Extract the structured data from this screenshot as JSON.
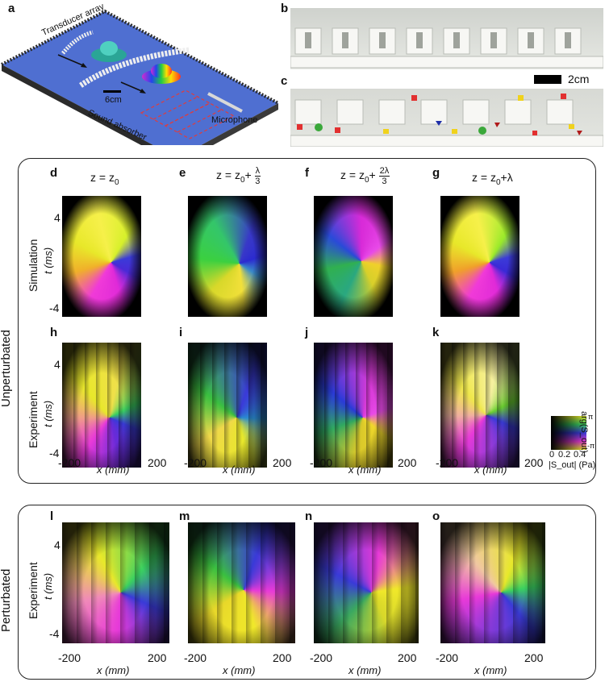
{
  "panels": {
    "a": "a",
    "b": "b",
    "c": "c",
    "d": "d",
    "e": "e",
    "f": "f",
    "g": "g",
    "h": "h",
    "i": "i",
    "j": "j",
    "k": "k",
    "l": "l",
    "m": "m",
    "n": "n",
    "o": "o"
  },
  "setup": {
    "transducer_array": "Transducer array",
    "sound_absorber": "Sound absorber",
    "microphone": "Microphone",
    "scale_6cm": "6cm"
  },
  "photo": {
    "scale_2cm": "2cm"
  },
  "columns": {
    "z_prefix": "z = z",
    "sub0": "0",
    "plus": "+",
    "lambda": "λ",
    "two_lambda": "2λ",
    "three": "3"
  },
  "rows": {
    "simulation": "Simulation",
    "experiment": "Experiment",
    "unperturbated": "Unperturbated",
    "perturbated": "Perturbated"
  },
  "axes": {
    "ylabel": "t (ms)",
    "xlabel": "x (mm)",
    "ytick_top": "4",
    "ytick_bottom": "-4",
    "xtick_left": "-200",
    "xtick_right": "200"
  },
  "colorbar": {
    "ticks": [
      "0",
      "0.2",
      "0.4"
    ],
    "xlabel": "|S_out| (Pa)",
    "ylabel": "arg(S_out)",
    "pi_top": "π",
    "pi_bottom": "-π"
  },
  "colors": {
    "frame": "#222222",
    "floor": "#4f6fd1",
    "absorber": "#2f2f2f",
    "dashed": "#e23b3b"
  }
}
